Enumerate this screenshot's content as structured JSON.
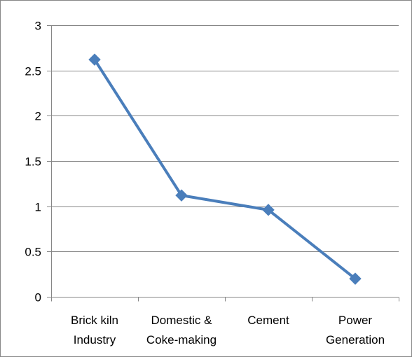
{
  "chart_data": {
    "type": "line",
    "categories": [
      [
        "Brick kiln",
        "Industry"
      ],
      [
        "Domestic &",
        "Coke-making"
      ],
      [
        "Cement"
      ],
      [
        "Power",
        "Generation"
      ]
    ],
    "series": [
      {
        "values": [
          2.62,
          1.12,
          0.96,
          0.2
        ],
        "color": "#4a7ebb",
        "marker": "diamond"
      }
    ],
    "ylim": [
      0,
      3
    ],
    "yticks": [
      0,
      0.5,
      1,
      1.5,
      2,
      2.5,
      3
    ],
    "ytick_labels": [
      "0",
      "0.5",
      "1",
      "1.5",
      "2",
      "2.5",
      "3"
    ],
    "grid": true,
    "gridline_color": "#868686",
    "legend": "none"
  }
}
